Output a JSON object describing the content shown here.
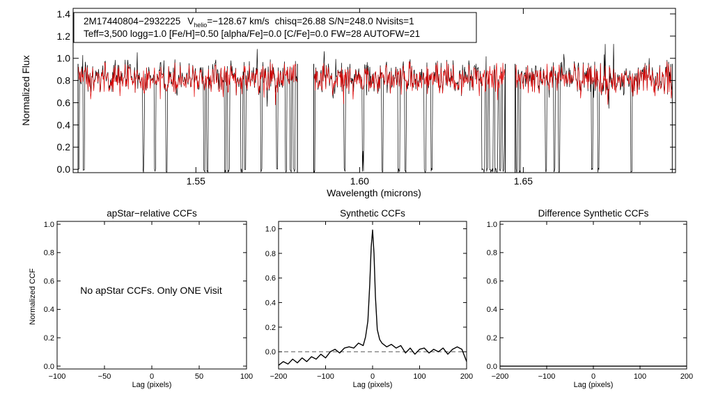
{
  "colors": {
    "axis": "#000000",
    "observed": "#000000",
    "model": "#e00000",
    "zero_line": "#555555"
  },
  "annotation": {
    "star_id": "2M17440804−2932225",
    "v_prefix": "V",
    "v_sub": "helio",
    "v_value": "=−128.67 km/s",
    "rest_line1": "chisq=26.88  S/N=248.0  Nvisits=1",
    "line2": "Teff=3,500 logg=1.0 [Fe/H]=0.50 [alpha/Fe]=0.0 [C/Fe]=0.0 FW=28 AUTOFW=21"
  },
  "panel_msg": "No apStar CCFs.  Only ONE Visit",
  "chart_data": [
    {
      "id": "spectrum",
      "type": "line",
      "title": "",
      "xlabel": "Wavelength (microns)",
      "ylabel": "Normalized Flux",
      "xlim": [
        1.5125,
        1.6965
      ],
      "ylim": [
        -0.03,
        1.45
      ],
      "xticks": [
        1.55,
        1.6,
        1.65
      ],
      "xtick_labels": [
        "1.55",
        "1.60",
        "1.65"
      ],
      "yticks": [
        0.0,
        0.2,
        0.4,
        0.6,
        0.8,
        1.0,
        1.2,
        1.4
      ],
      "ytick_labels": [
        "0.0",
        "0.2",
        "0.4",
        "0.6",
        "0.8",
        "1.0",
        "1.2",
        "1.4"
      ],
      "chip_ranges": [
        [
          1.514,
          1.581
        ],
        [
          1.586,
          1.6445
        ],
        [
          1.6475,
          1.6955
        ]
      ],
      "series": [
        {
          "name": "observed",
          "color": "#000000",
          "continuum": 0.83,
          "noise": 0.11
        },
        {
          "name": "model",
          "color": "#e00000",
          "continuum": 0.82,
          "noise": 0.09
        }
      ],
      "absorption_lines": [
        1.5142,
        1.5157,
        1.534,
        1.5375,
        1.541,
        1.5525,
        1.5535,
        1.559,
        1.56,
        1.564,
        1.565,
        1.57,
        1.5748,
        1.5775,
        1.579,
        1.58,
        1.5862,
        1.5955,
        1.601,
        1.607,
        1.612,
        1.614,
        1.62,
        1.622,
        1.6375,
        1.638,
        1.639,
        1.64,
        1.6405,
        1.6415,
        1.642,
        1.643,
        1.644,
        1.648,
        1.649,
        1.657,
        1.6595,
        1.661,
        1.671,
        1.673,
        1.683
      ]
    },
    {
      "id": "apstar-ccf",
      "type": "line",
      "title": "apStar−relative CCFs",
      "xlabel": "Lag (pixels)",
      "ylabel": "Normalized CCF",
      "xlim": [
        -100,
        100
      ],
      "ylim": [
        -0.02,
        1.02
      ],
      "xticks": [
        -100,
        -50,
        0,
        50,
        100
      ],
      "xtick_labels": [
        "−100",
        "−50",
        "0",
        "50",
        "100"
      ],
      "yticks": [
        0.0,
        0.2,
        0.4,
        0.6,
        0.8,
        1.0
      ],
      "ytick_labels": [
        "0.0",
        "0.2",
        "0.4",
        "0.6",
        "0.8",
        "1.0"
      ],
      "series": []
    },
    {
      "id": "synthetic-ccf",
      "type": "line",
      "title": "Synthetic CCFs",
      "xlabel": "Lag (pixels)",
      "ylabel": "",
      "xlim": [
        -200,
        200
      ],
      "ylim": [
        -0.14,
        1.06
      ],
      "xticks": [
        -200,
        -100,
        0,
        100,
        200
      ],
      "xtick_labels": [
        "−200",
        "−100",
        "0",
        "100",
        "200"
      ],
      "yticks": [
        0.0,
        0.2,
        0.4,
        0.6,
        0.8,
        1.0
      ],
      "ytick_labels": [
        "0.0",
        "0.2",
        "0.4",
        "0.6",
        "0.8",
        "1.0"
      ],
      "zero_line": 0.0,
      "series": [
        {
          "name": "CCF",
          "color": "#000000",
          "x": [
            -200,
            -190,
            -180,
            -170,
            -160,
            -150,
            -140,
            -130,
            -120,
            -110,
            -100,
            -90,
            -80,
            -70,
            -60,
            -50,
            -40,
            -30,
            -20,
            -15,
            -10,
            -6,
            -3,
            0,
            3,
            6,
            10,
            15,
            20,
            30,
            40,
            50,
            60,
            70,
            80,
            90,
            100,
            110,
            120,
            130,
            140,
            150,
            160,
            170,
            180,
            190,
            200
          ],
          "y": [
            -0.11,
            -0.08,
            -0.1,
            -0.06,
            -0.09,
            -0.05,
            -0.08,
            -0.04,
            -0.06,
            -0.02,
            -0.05,
            0.0,
            0.02,
            -0.01,
            0.03,
            0.04,
            0.03,
            0.07,
            0.05,
            0.12,
            0.25,
            0.55,
            0.85,
            0.99,
            0.8,
            0.45,
            0.18,
            0.1,
            0.07,
            0.04,
            0.06,
            0.03,
            0.05,
            -0.01,
            0.03,
            -0.02,
            0.02,
            0.03,
            -0.01,
            0.02,
            0.0,
            0.03,
            -0.02,
            0.02,
            0.04,
            0.02,
            -0.08
          ]
        }
      ]
    },
    {
      "id": "difference-ccf",
      "type": "line",
      "title": "Difference Synthetic CCFs",
      "xlabel": "Lag (pixels)",
      "ylabel": "",
      "xlim": [
        -200,
        200
      ],
      "ylim": [
        -0.02,
        1.02
      ],
      "xticks": [
        -200,
        -100,
        0,
        100,
        200
      ],
      "xtick_labels": [
        "−200",
        "−100",
        "0",
        "100",
        "200"
      ],
      "yticks": [
        0.0,
        0.2,
        0.4,
        0.6,
        0.8,
        1.0
      ],
      "ytick_labels": [
        "0.0",
        "0.2",
        "0.4",
        "0.6",
        "0.8",
        "1.0"
      ],
      "series": [
        {
          "name": "difference",
          "color": "#000000",
          "x": [
            -200,
            200
          ],
          "y": [
            0.0,
            0.0
          ]
        }
      ]
    }
  ]
}
